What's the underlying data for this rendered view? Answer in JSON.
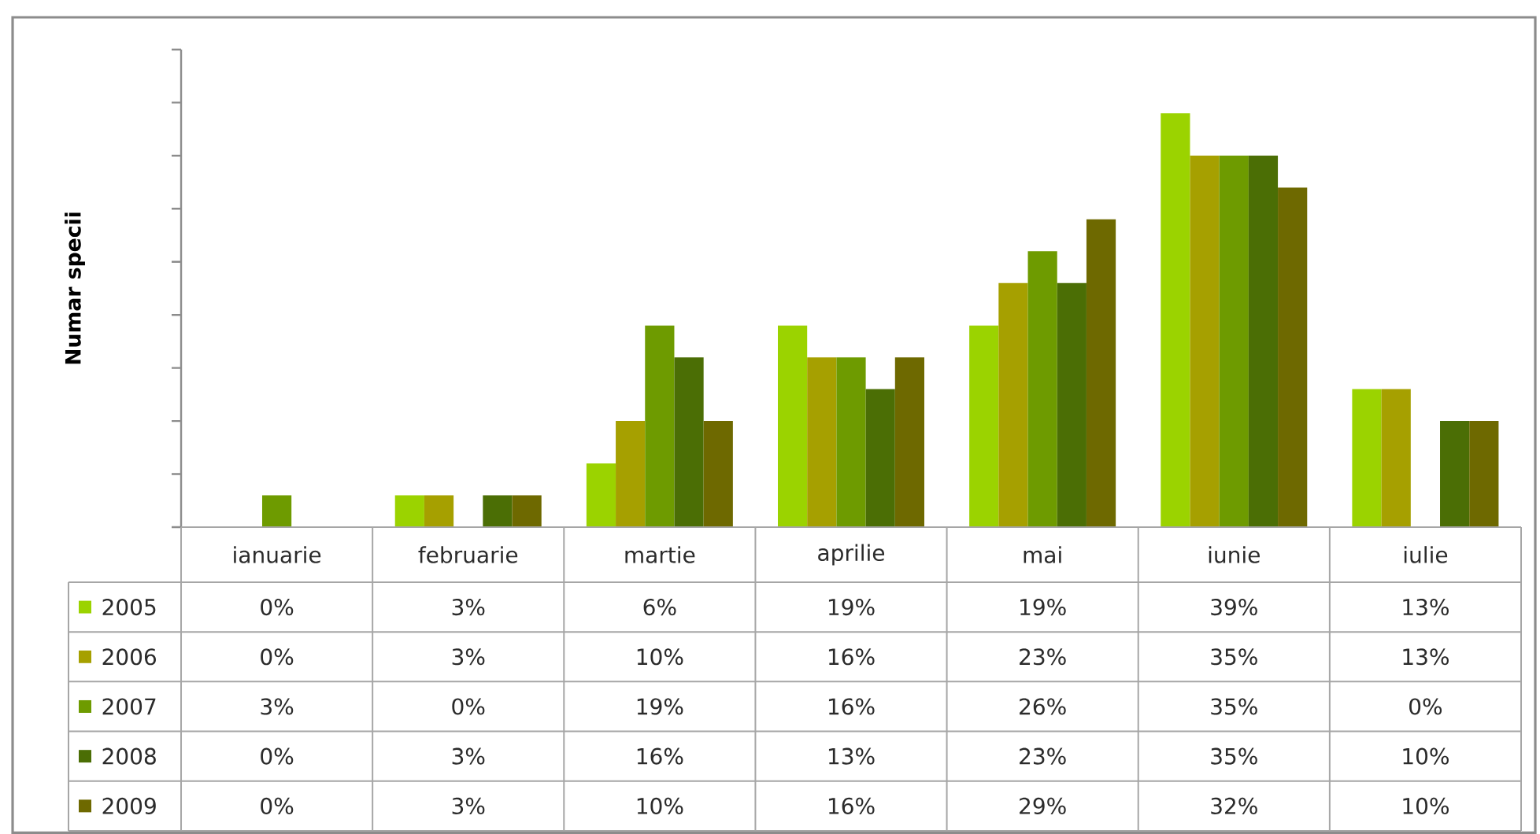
{
  "chart_data": {
    "type": "bar",
    "ylabel": "Numar specii",
    "categories": [
      "ianuarie",
      "februarie",
      "martie",
      "aprilie",
      "mai",
      "iunie",
      "iulie"
    ],
    "series": [
      {
        "name": "2005",
        "color": "#9bd300",
        "values": [
          0,
          3,
          6,
          19,
          19,
          39,
          13
        ],
        "value_labels": [
          "0%",
          "3%",
          "6%",
          "19%",
          "19%",
          "39%",
          "13%"
        ]
      },
      {
        "name": "2006",
        "color": "#a6a000",
        "values": [
          0,
          3,
          10,
          16,
          23,
          35,
          13
        ],
        "value_labels": [
          "0%",
          "3%",
          "10%",
          "16%",
          "23%",
          "35%",
          "13%"
        ]
      },
      {
        "name": "2007",
        "color": "#6e9b00",
        "values": [
          3,
          0,
          19,
          16,
          26,
          35,
          0
        ],
        "value_labels": [
          "3%",
          "0%",
          "19%",
          "16%",
          "26%",
          "35%",
          "0%"
        ]
      },
      {
        "name": "2008",
        "color": "#4b6e05",
        "values": [
          0,
          3,
          16,
          13,
          23,
          35,
          10
        ],
        "value_labels": [
          "0%",
          "3%",
          "16%",
          "13%",
          "23%",
          "35%",
          "10%"
        ]
      },
      {
        "name": "2009",
        "color": "#6e6900",
        "values": [
          0,
          3,
          10,
          16,
          29,
          32,
          10
        ],
        "value_labels": [
          "0%",
          "3%",
          "10%",
          "16%",
          "29%",
          "32%",
          "10%"
        ]
      }
    ],
    "ylim": [
      0,
      45
    ],
    "yticks": [
      {
        "value": 0,
        "label": null
      },
      {
        "value": 5,
        "label": null
      },
      {
        "value": 10,
        "label": null
      },
      {
        "value": 15,
        "label": null
      },
      {
        "value": 20,
        "label": null
      },
      {
        "value": 25,
        "label": null
      },
      {
        "value": 30,
        "label": null
      },
      {
        "value": 35,
        "label": null
      },
      {
        "value": 40,
        "label": null
      },
      {
        "value": 45,
        "label": null
      }
    ],
    "tick_labels": "x",
    "legend": "bottom"
  }
}
